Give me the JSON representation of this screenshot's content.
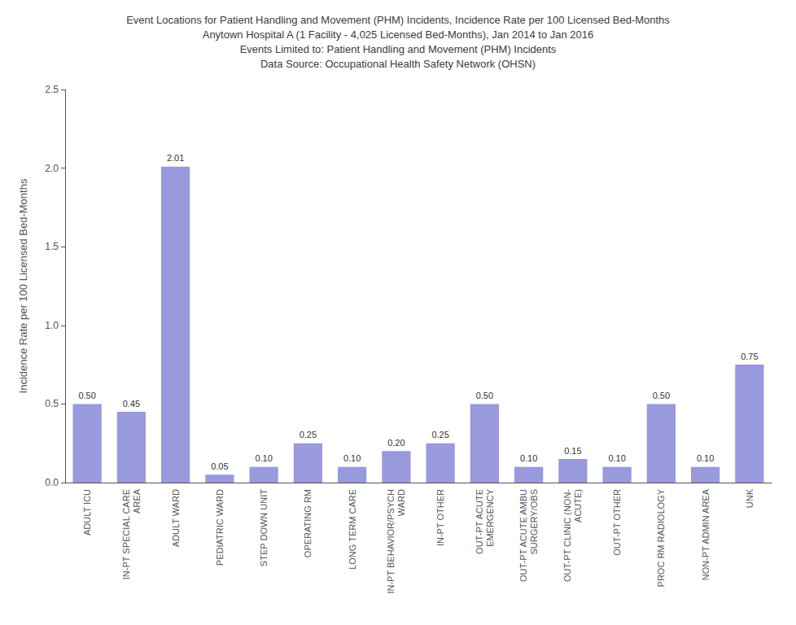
{
  "chart_data": {
    "type": "bar",
    "title": "Event Locations for Patient Handling and Movement (PHM) Incidents, Incidence Rate per 100 Licensed Bed-Months\nAnytown Hospital A (1 Facility - 4,025 Licensed Bed-Months), Jan 2014 to Jan 2016\nEvents Limited to: Patient Handling and Movement (PHM) Incidents\nData Source: Occupational Health Safety Network (OHSN)",
    "categories": [
      "ADULT ICU",
      "IN-PT SPECIAL CARE\nAREA",
      "ADULT WARD",
      "PEDIATRIC WARD",
      "STEP DOWN UNIT",
      "OPERATING RM",
      "LONG TERM CARE",
      "IN-PT BEHAVIOR/PSYCH\nWARD",
      "IN-PT OTHER",
      "OUT-PT ACUTE\nEMERGENCY",
      "OUT-PT ACUTE AMBU\nSURGERY/OBS",
      "OUT-PT CLINIC (NON-\nACUTE)",
      "OUT-PT OTHER",
      "PROC RM RADIOLOGY",
      "NON-PT ADMIN AREA",
      "UNK"
    ],
    "values": [
      0.5,
      0.45,
      2.01,
      0.05,
      0.1,
      0.25,
      0.1,
      0.2,
      0.25,
      0.5,
      0.1,
      0.15,
      0.1,
      0.5,
      0.1,
      0.75
    ],
    "value_labels": [
      "0.50",
      "0.45",
      "2.01",
      "0.05",
      "0.10",
      "0.25",
      "0.10",
      "0.20",
      "0.25",
      "0.50",
      "0.10",
      "0.15",
      "0.10",
      "0.50",
      "0.10",
      "0.75"
    ],
    "data_labels": true,
    "color": "#9999dd",
    "ylabel": "Incidence Rate per 100 Licensed Bed-Months",
    "ylim": [
      0,
      2.5
    ],
    "yticks": [
      {
        "value": 0,
        "label": "0.0"
      },
      0.5,
      {
        "value": 1.0,
        "label": "1.0"
      },
      1.5,
      {
        "value": 2.0,
        "label": "2.0"
      },
      2.5
    ],
    "grid": false
  }
}
